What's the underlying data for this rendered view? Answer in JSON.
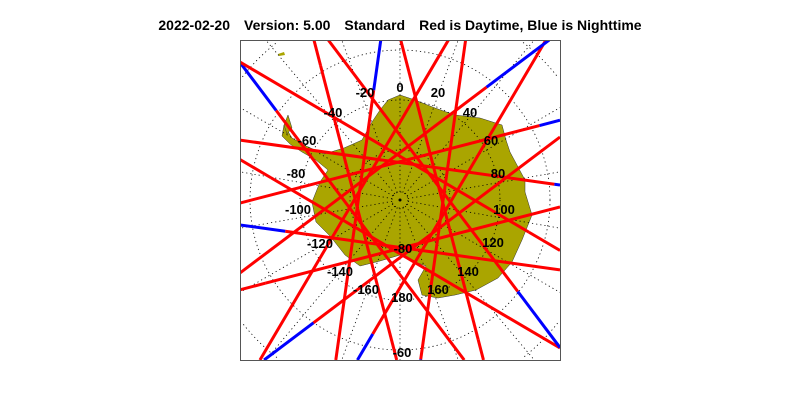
{
  "header": {
    "date": "2022-02-20",
    "version": "Version: 5.00",
    "mode": "Standard",
    "legend_text": "Red is Daytime, Blue is Nighttime"
  },
  "map": {
    "projection": "south polar stereographic",
    "land_color": "#aaa500",
    "day_color": "#ff0000",
    "night_color": "#0000ff",
    "longitude_labels": [
      "0",
      "20",
      "40",
      "60",
      "80",
      "100",
      "120",
      "140",
      "160",
      "180",
      "-160",
      "-140",
      "-120",
      "-100",
      "-80",
      "-60",
      "-40",
      "-20"
    ],
    "latitude_labels": [
      "-80",
      "-60"
    ]
  }
}
